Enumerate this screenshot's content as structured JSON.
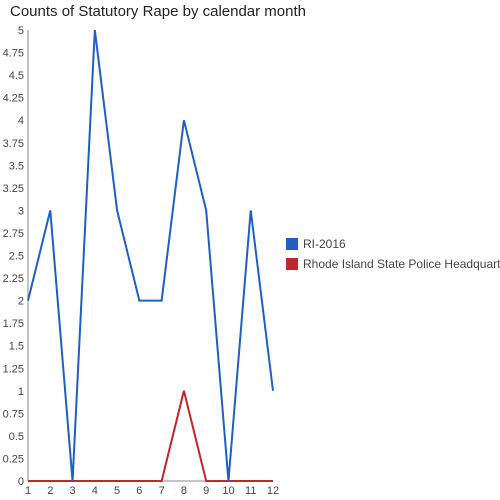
{
  "chart_data": {
    "type": "line",
    "title": "Counts of Statutory Rape by calendar month",
    "xlabel": "",
    "ylabel": "",
    "x": [
      1,
      2,
      3,
      4,
      5,
      6,
      7,
      8,
      9,
      10,
      11,
      12
    ],
    "xlim": [
      1,
      12
    ],
    "ylim": [
      0,
      5
    ],
    "yticks": [
      "0",
      "0.25",
      "0.5",
      "0.75",
      "1",
      "1.25",
      "1.5",
      "1.75",
      "2",
      "2.25",
      "2.5",
      "2.75",
      "3",
      "3.25",
      "3.5",
      "3.75",
      "4",
      "4.25",
      "4.5",
      "4.75",
      "5"
    ],
    "xticks": [
      "1",
      "2",
      "3",
      "4",
      "5",
      "6",
      "7",
      "8",
      "9",
      "10",
      "11",
      "12"
    ],
    "grid": false,
    "legend_position": "right",
    "series": [
      {
        "name": "RI-2016",
        "color": "#1f5fbf",
        "values": [
          2,
          3,
          0,
          5,
          3,
          2,
          2,
          4,
          3,
          0,
          3,
          1
        ]
      },
      {
        "name": "Rhode Island State Police Headquarters",
        "color": "#c0272d",
        "values": [
          0,
          0,
          0,
          0,
          0,
          0,
          0,
          1,
          0,
          0,
          0,
          0
        ]
      }
    ]
  }
}
